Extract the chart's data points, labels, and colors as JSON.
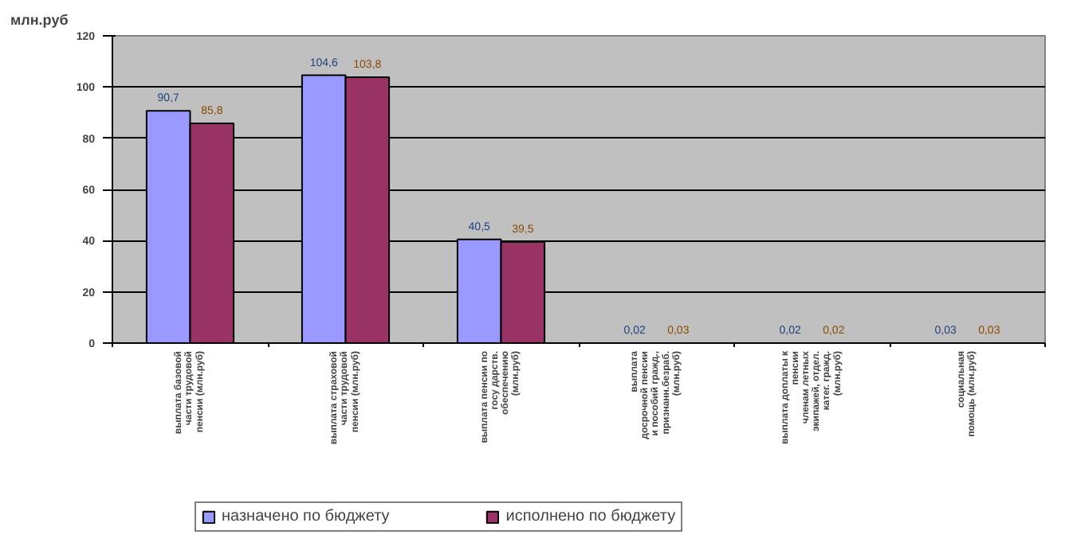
{
  "chart_data": {
    "type": "bar",
    "ylabel": "млн.руб",
    "categories": [
      "выплата базовой\nчасти трудовой\nпенсии (млн.руб)",
      "выплата страховой\nчасти трудовой\nпенсии (млн.руб)",
      "выплата пенсии по\nгосу дарств.\nобеспечению\n(млн.руб)",
      "выплата\nдосрочной пенсии\nи пособий гражд.,\nпризнанн.безраб.\n(млн.руб)",
      "выплата доплаты к\nпенсии\nчленам летных\nэкипажей, отдел.\nкатег. гражд.\n(млн.руб)",
      "социальная\nпомощь (млн.руб)"
    ],
    "series": [
      {
        "name": "назначено по бюджету",
        "color": "#9999ff",
        "values": [
          90.7,
          104.6,
          40.5,
          0.02,
          0.02,
          0.03
        ],
        "value_labels": [
          "90,7",
          "104,6",
          "40,5",
          "0,02",
          "0,02",
          "0,03"
        ]
      },
      {
        "name": "исполнено по бюджету",
        "color": "#993366",
        "values": [
          85.8,
          103.8,
          39.5,
          0.03,
          0.02,
          0.03
        ],
        "value_labels": [
          "85,8",
          "103,8",
          "39,5",
          "0,03",
          "0,02",
          "0,03"
        ]
      }
    ],
    "ylim": [
      0,
      120
    ],
    "yticks": [
      0,
      20,
      40,
      60,
      80,
      100,
      120
    ],
    "grid": "y",
    "legend": "bottom"
  }
}
